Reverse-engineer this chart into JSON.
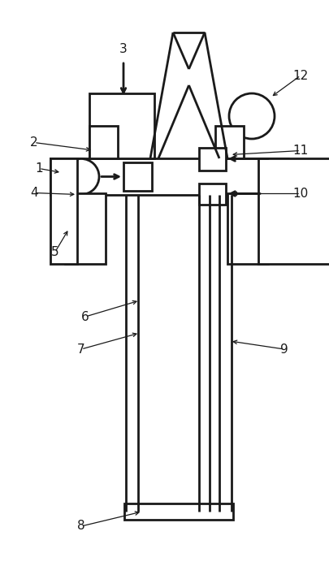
{
  "bg_color": "#ffffff",
  "line_color": "#1a1a1a",
  "lw": 2.0,
  "ann_lw": 0.9,
  "label_fs": 11,
  "fig_w": 4.05,
  "fig_h": 6.97
}
